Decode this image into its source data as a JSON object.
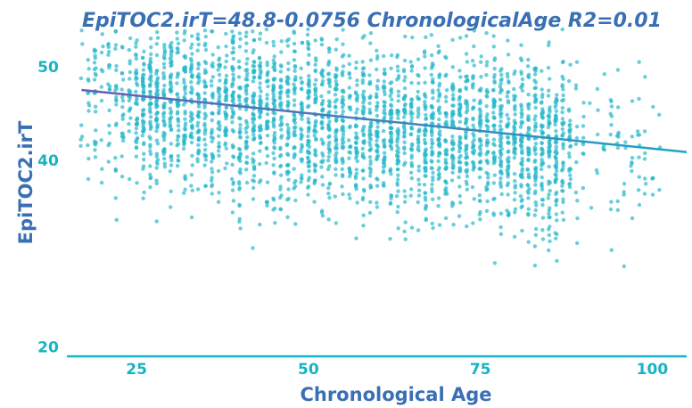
{
  "chart_data": {
    "type": "scatter",
    "title": "EpiTOC2.irT=48.8-0.0756 ChronologicalAge R2=0.01",
    "xlabel": "Chronological Age",
    "ylabel": "EpiTOC2.irT",
    "xlim": [
      15,
      105
    ],
    "ylim": [
      19,
      56
    ],
    "x_ticks": [
      25,
      50,
      75,
      100
    ],
    "y_ticks": [
      20,
      40,
      50
    ],
    "regression": {
      "intercept": 48.8,
      "slope": -0.0756
    },
    "point_cloud": {
      "n_points": 3200,
      "x_range": [
        17,
        101
      ],
      "y_center": 44.5,
      "y_spread": 4.5,
      "y_range": [
        27,
        54
      ]
    },
    "grid": false,
    "legend": "none"
  },
  "colors": {
    "points": "#2ab9cb",
    "axis_y": "#3a6fb4",
    "axis_x": "#18b4c6",
    "line_start": "#6a5cb5",
    "line_end": "#1ba5c6",
    "title": "#3a6fb4",
    "ticks": "#17b3c4"
  }
}
